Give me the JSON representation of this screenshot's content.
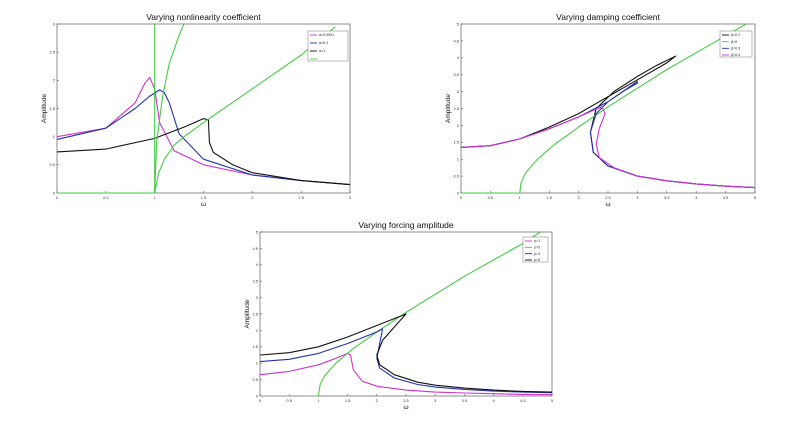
{
  "chart_data": [
    {
      "type": "line",
      "title": "Varying nonlinearity coefficient",
      "xlabel": "ω",
      "ylabel": "Amplitude",
      "xlim": [
        0,
        3
      ],
      "ylim": [
        0,
        3
      ],
      "xticks": [
        0,
        0.5,
        1,
        1.5,
        2,
        2.5,
        3
      ],
      "yticks": [
        0,
        0.5,
        1,
        1.5,
        2,
        2.5,
        3
      ],
      "legend_position": "top-right",
      "series": [
        {
          "name": "a=0.0001",
          "color": "#cc33cc",
          "x": [
            0,
            0.5,
            0.8,
            0.9,
            0.95,
            1.0,
            1.05,
            1.2,
            1.5,
            2.0,
            2.5,
            3.0
          ],
          "y": [
            1.0,
            1.15,
            1.6,
            1.95,
            2.05,
            1.85,
            1.25,
            0.75,
            0.5,
            0.32,
            0.22,
            0.15
          ]
        },
        {
          "name": "a=0.1",
          "color": "#2233aa",
          "x": [
            0,
            0.5,
            0.8,
            0.95,
            1.05,
            1.1,
            1.15,
            1.25,
            1.5,
            2.0,
            2.5,
            3.0
          ],
          "y": [
            0.95,
            1.15,
            1.5,
            1.72,
            1.83,
            1.78,
            1.6,
            1.05,
            0.6,
            0.32,
            0.22,
            0.15
          ]
        },
        {
          "name": "a=1",
          "color": "#111111",
          "x": [
            0,
            0.5,
            1.0,
            1.3,
            1.5,
            1.55,
            1.56,
            1.6,
            1.8,
            2.0,
            2.5,
            3.0
          ],
          "y": [
            0.73,
            0.78,
            0.97,
            1.17,
            1.32,
            1.3,
            0.9,
            0.72,
            0.5,
            0.36,
            0.22,
            0.15
          ]
        },
        {
          "name": "",
          "color": "#44cc44",
          "x": [
            1.0,
            1.0
          ],
          "y": [
            0,
            3.0
          ]
        },
        {
          "name": "",
          "color": "#44cc44",
          "x": [
            1.0,
            1.02,
            1.08,
            1.15,
            1.25,
            1.3
          ],
          "y": [
            0,
            0.9,
            1.7,
            2.3,
            2.8,
            3.0
          ]
        },
        {
          "name": "",
          "color": "#44cc44",
          "x": [
            0,
            1.0,
            1.04,
            1.1,
            1.2,
            1.3,
            1.5,
            2.0,
            2.5,
            2.85
          ],
          "y": [
            0,
            0,
            0.35,
            0.6,
            0.85,
            1.0,
            1.25,
            1.85,
            2.45,
            2.95
          ]
        }
      ]
    },
    {
      "type": "line",
      "title": "Varying damping coefficient",
      "xlabel": "ω",
      "ylabel": "Amplitude",
      "xlim": [
        0,
        5
      ],
      "ylim": [
        0,
        5
      ],
      "xticks": [
        0,
        0.5,
        1,
        1.5,
        2,
        2.5,
        3,
        3.5,
        4,
        4.5,
        5
      ],
      "yticks": [
        0,
        0.5,
        1,
        1.5,
        2,
        2.5,
        3,
        3.5,
        4,
        4.5,
        5
      ],
      "legend_position": "top-right",
      "series": [
        {
          "name": "β=0.2",
          "color": "#111111",
          "x": [
            0,
            0.5,
            1.0,
            1.5,
            2.0,
            2.5,
            3.0,
            3.5,
            3.65,
            3.3,
            3.0,
            2.6,
            2.3,
            2.2,
            2.25,
            2.5,
            3.0,
            3.5,
            4.0,
            4.5,
            5.0
          ],
          "y": [
            1.35,
            1.4,
            1.6,
            1.95,
            2.35,
            2.85,
            3.35,
            3.85,
            4.05,
            3.75,
            3.45,
            3.0,
            2.5,
            1.8,
            1.2,
            0.8,
            0.5,
            0.36,
            0.27,
            0.2,
            0.16
          ]
        },
        {
          "name": "β=0",
          "color": "#44cc44",
          "x": [
            0,
            1.0,
            1.02,
            1.1,
            1.3,
            1.6,
            2.0,
            2.5,
            3.0,
            3.5,
            4.0,
            4.5,
            4.85
          ],
          "y": [
            0,
            0,
            0.3,
            0.6,
            1.0,
            1.45,
            1.95,
            2.55,
            3.1,
            3.65,
            4.15,
            4.65,
            5.0
          ]
        },
        {
          "name": "β=0.3",
          "color": "#2233aa",
          "x": [
            0,
            0.5,
            1.0,
            1.5,
            2.0,
            2.5,
            3.0,
            3.0,
            2.8,
            2.5,
            2.3,
            2.2,
            2.25,
            2.5,
            3.0,
            3.5,
            4.0,
            4.5,
            5.0
          ],
          "y": [
            1.35,
            1.4,
            1.6,
            1.9,
            2.25,
            2.7,
            3.3,
            3.25,
            3.05,
            2.7,
            2.35,
            1.8,
            1.2,
            0.8,
            0.5,
            0.36,
            0.27,
            0.2,
            0.16
          ]
        },
        {
          "name": "β=0.4",
          "color": "#cc33cc",
          "x": [
            0,
            0.5,
            1.0,
            1.5,
            2.0,
            2.25,
            2.4,
            2.45,
            2.35,
            2.3,
            2.35,
            2.6,
            3.0,
            3.5,
            4.0,
            4.5,
            5.0
          ],
          "y": [
            1.35,
            1.4,
            1.6,
            1.9,
            2.25,
            2.45,
            2.55,
            2.35,
            1.9,
            1.45,
            1.05,
            0.75,
            0.5,
            0.36,
            0.27,
            0.2,
            0.16
          ]
        }
      ]
    },
    {
      "type": "line",
      "title": "Varying forcing amplitude",
      "xlabel": "ω",
      "ylabel": "Amplitude",
      "xlim": [
        0,
        5
      ],
      "ylim": [
        0,
        5
      ],
      "xticks": [
        0,
        0.5,
        1,
        1.5,
        2,
        2.5,
        3,
        3.5,
        4,
        4.5,
        5
      ],
      "yticks": [
        0,
        0.5,
        1,
        1.5,
        2,
        2.5,
        3,
        3.5,
        4,
        4.5,
        5
      ],
      "legend_position": "top-right",
      "series": [
        {
          "name": "p=1",
          "color": "#cc33cc",
          "x": [
            0,
            0.5,
            1.0,
            1.3,
            1.5,
            1.55,
            1.6,
            1.75,
            2.0,
            2.5,
            3.0,
            3.5,
            4.0,
            4.5,
            5.0
          ],
          "y": [
            0.65,
            0.75,
            0.95,
            1.15,
            1.3,
            1.25,
            0.8,
            0.45,
            0.3,
            0.18,
            0.12,
            0.09,
            0.07,
            0.05,
            0.04
          ]
        },
        {
          "name": "p=0",
          "color": "#44cc44",
          "x": [
            0,
            1.0,
            1.03,
            1.1,
            1.3,
            1.6,
            2.0,
            2.5,
            3.0,
            3.5,
            4.0,
            4.5,
            4.8
          ],
          "y": [
            0,
            0,
            0.35,
            0.6,
            1.0,
            1.45,
            1.95,
            2.55,
            3.1,
            3.65,
            4.15,
            4.65,
            5.0
          ]
        },
        {
          "name": "p=3",
          "color": "#2233aa",
          "x": [
            0,
            0.5,
            1.0,
            1.5,
            2.0,
            2.1,
            2.05,
            2.0,
            2.05,
            2.3,
            2.7,
            3.0,
            3.5,
            4.0,
            4.5,
            5.0
          ],
          "y": [
            1.05,
            1.12,
            1.3,
            1.6,
            1.95,
            2.05,
            1.6,
            1.15,
            0.85,
            0.55,
            0.35,
            0.27,
            0.2,
            0.15,
            0.12,
            0.1
          ]
        },
        {
          "name": "p=5",
          "color": "#111111",
          "x": [
            0,
            0.5,
            1.0,
            1.5,
            2.0,
            2.5,
            2.35,
            2.1,
            2.0,
            2.05,
            2.3,
            2.7,
            3.0,
            3.5,
            4.0,
            4.5,
            5.0
          ],
          "y": [
            1.25,
            1.32,
            1.5,
            1.8,
            2.15,
            2.5,
            2.2,
            1.7,
            1.25,
            0.95,
            0.65,
            0.42,
            0.33,
            0.24,
            0.18,
            0.14,
            0.12
          ]
        }
      ]
    }
  ]
}
